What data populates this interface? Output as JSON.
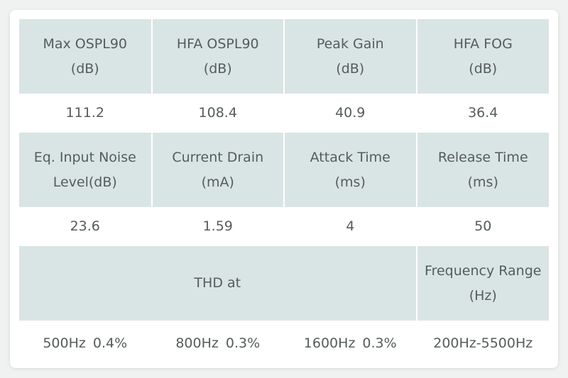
{
  "table": {
    "row1_headers": [
      {
        "line1": "Max OSPL90",
        "line2": "(dB)"
      },
      {
        "line1": "HFA OSPL90",
        "line2": "(dB)"
      },
      {
        "line1": "Peak Gain",
        "line2": "(dB)"
      },
      {
        "line1": "HFA FOG",
        "line2": "(dB)"
      }
    ],
    "row1_values": [
      "111.2",
      "108.4",
      "40.9",
      "36.4"
    ],
    "row2_headers": [
      {
        "line1": "Eq. Input Noise",
        "line2": "Level(dB)"
      },
      {
        "line1": "Current Drain",
        "line2": "(mA)"
      },
      {
        "line1": "Attack Time",
        "line2": "(ms)"
      },
      {
        "line1": "Release Time",
        "line2": "(ms)"
      }
    ],
    "row2_values": [
      "23.6",
      "1.59",
      "4",
      "50"
    ],
    "row3_headers": {
      "thd": "THD at",
      "freq_range": {
        "line1": "Frequency Range",
        "line2": "(Hz)"
      }
    },
    "row3_values": [
      {
        "freq": "500Hz",
        "pct": "0.4%"
      },
      {
        "freq": "800Hz",
        "pct": "0.3%"
      },
      {
        "freq": "1600Hz",
        "pct": "0.3%"
      },
      {
        "freq": "200Hz-5500Hz",
        "pct": ""
      }
    ]
  },
  "colors": {
    "header_bg": "#d9e5e4",
    "text": "#555c5c",
    "page_bg": "#f0f2f2"
  }
}
